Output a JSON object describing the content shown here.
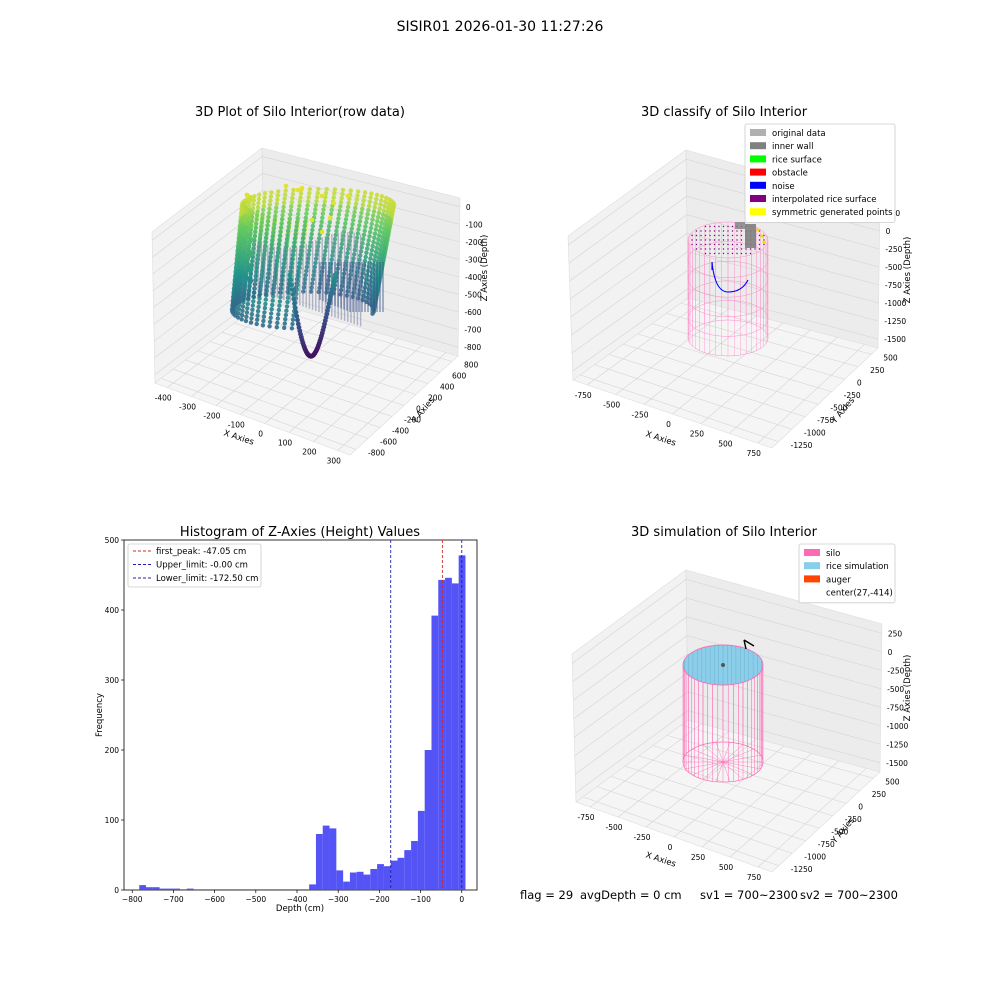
{
  "suptitle": "SISIR01 2026-01-30 11:27:26",
  "status": {
    "flag": "flag = 29",
    "avg": "avgDepth = 0 cm",
    "sv1": "sv1 = 700~2300",
    "sv2": "sv2 = 700~2300"
  },
  "colors": {
    "bar": "#4a4af5",
    "first_peak_line": "#d62728",
    "limit_line": "#1f1fb4",
    "silo": "#ff69b4",
    "rice": "#87ceeb",
    "auger": "#ff4500",
    "inner_wall": "#808080",
    "noise": "#0000ff"
  },
  "chart_data": [
    {
      "type": "scatter",
      "subtype": "3d",
      "title": "3D Plot of Silo Interior(row data)",
      "xlabel": "X Axies",
      "ylabel": "Y Axies",
      "zlabel": "Z Axies (Depth)",
      "x_ticks": [
        "-400",
        "-300",
        "-200",
        "-100",
        "0",
        "100",
        "200",
        "300"
      ],
      "y_ticks": [
        "-800",
        "-600",
        "-400",
        "-200",
        "0",
        "200",
        "400",
        "600",
        "800"
      ],
      "z_ticks": [
        "0",
        "-100",
        "-200",
        "-300",
        "-400",
        "-500",
        "-600",
        "-700",
        "-800"
      ],
      "xlim": [
        -420,
        310
      ],
      "ylim": [
        -850,
        850
      ],
      "zlim": [
        -820,
        40
      ],
      "colormap": "viridis",
      "grid": true
    },
    {
      "type": "scatter",
      "subtype": "3d",
      "title": "3D classify of Silo Interior",
      "xlabel": "X Axies",
      "ylabel": "Y Axies",
      "zlabel": "Z Axies (Depth)",
      "x_ticks": [
        "-750",
        "-500",
        "-250",
        "0",
        "250",
        "500",
        "750"
      ],
      "y_ticks": [
        "-1250",
        "-1000",
        "-750",
        "-500",
        "-250",
        "0",
        "250",
        "500"
      ],
      "z_ticks": [
        "250",
        "0",
        "-250",
        "-500",
        "-750",
        "-1000",
        "-1250",
        "-1500"
      ],
      "legend_position": "top-right",
      "legend": [
        {
          "label": "original data",
          "color": "#b0b0b0"
        },
        {
          "label": "inner wall",
          "color": "#808080"
        },
        {
          "label": "rice surface",
          "color": "#00ff00"
        },
        {
          "label": "obstacle",
          "color": "#ff0000"
        },
        {
          "label": "noise",
          "color": "#0000ff"
        },
        {
          "label": "interpolated rice surface",
          "color": "#800080"
        },
        {
          "label": "symmetric generated points",
          "color": "#ffff00"
        }
      ],
      "grid": true
    },
    {
      "type": "bar",
      "subtype": "histogram",
      "title": "Histogram of Z-Axies (Height) Values",
      "xlabel": "Depth (cm)",
      "ylabel": "Frequency",
      "xlim": [
        -820,
        37
      ],
      "ylim": [
        0,
        500
      ],
      "x_ticks": [
        -800,
        -700,
        -600,
        -500,
        -400,
        -300,
        -200,
        -100,
        0
      ],
      "y_ticks": [
        0,
        100,
        200,
        300,
        400,
        500
      ],
      "bin_width": 16.5,
      "bins": [
        [
          -783,
          7
        ],
        [
          -766.5,
          4
        ],
        [
          -750,
          4
        ],
        [
          -733.5,
          2
        ],
        [
          -717,
          2
        ],
        [
          -700.5,
          2
        ],
        [
          -684,
          1
        ],
        [
          -667.5,
          2
        ],
        [
          -651,
          1
        ],
        [
          -634.5,
          1
        ],
        [
          -618,
          1
        ],
        [
          -601.5,
          1
        ],
        [
          -585,
          1
        ],
        [
          -568.5,
          1
        ],
        [
          -552,
          1
        ],
        [
          -535.5,
          1
        ],
        [
          -519,
          1
        ],
        [
          -502.5,
          1
        ],
        [
          -486,
          1
        ],
        [
          -469.5,
          1
        ],
        [
          -453,
          1
        ],
        [
          -436.5,
          1
        ],
        [
          -420,
          1
        ],
        [
          -403.5,
          1
        ],
        [
          -387,
          1
        ],
        [
          -370.5,
          8
        ],
        [
          -354,
          80
        ],
        [
          -337.5,
          92
        ],
        [
          -321,
          88
        ],
        [
          -304.5,
          28
        ],
        [
          -288,
          12
        ],
        [
          -271.5,
          25
        ],
        [
          -255,
          26
        ],
        [
          -238.5,
          22
        ],
        [
          -222,
          30
        ],
        [
          -205.5,
          37
        ],
        [
          -189,
          34
        ],
        [
          -172.5,
          42
        ],
        [
          -156,
          46
        ],
        [
          -139.5,
          57
        ],
        [
          -123,
          70
        ],
        [
          -106.5,
          113
        ],
        [
          -90,
          200
        ],
        [
          -73.5,
          392
        ],
        [
          -57,
          443
        ],
        [
          -40.5,
          446
        ],
        [
          -24,
          438
        ],
        [
          -7.5,
          478
        ]
      ],
      "vlines": [
        {
          "label": "first_peak: -47.05 cm",
          "value": -47.05,
          "kind": "first_peak"
        },
        {
          "label": "Upper_limit: -0.00 cm",
          "value": 0.0,
          "kind": "limit"
        },
        {
          "label": "Lower_limit: -172.50 cm",
          "value": -172.5,
          "kind": "limit"
        }
      ],
      "legend_position": "top-left",
      "grid": false
    },
    {
      "type": "scatter",
      "subtype": "3d",
      "title": "3D simulation of Silo Interior",
      "xlabel": "X Axies",
      "ylabel": "Y Axies",
      "zlabel": "Z Axies (Depth)",
      "x_ticks": [
        "-750",
        "-500",
        "-250",
        "0",
        "250",
        "500",
        "750"
      ],
      "y_ticks": [
        "-1250",
        "-1000",
        "-750",
        "-500",
        "-250",
        "0",
        "250",
        "500"
      ],
      "z_ticks": [
        "250",
        "0",
        "-250",
        "-500",
        "-750",
        "-1000",
        "-1250",
        "-1500"
      ],
      "legend_position": "top-right",
      "legend": [
        {
          "label": "silo",
          "color": "#ff69b4"
        },
        {
          "label": "rice simulation",
          "color": "#87ceeb"
        },
        {
          "label": "auger",
          "color": "#ff4500"
        },
        {
          "label": "center(27,-414)",
          "color": "none"
        }
      ],
      "grid": true
    }
  ]
}
